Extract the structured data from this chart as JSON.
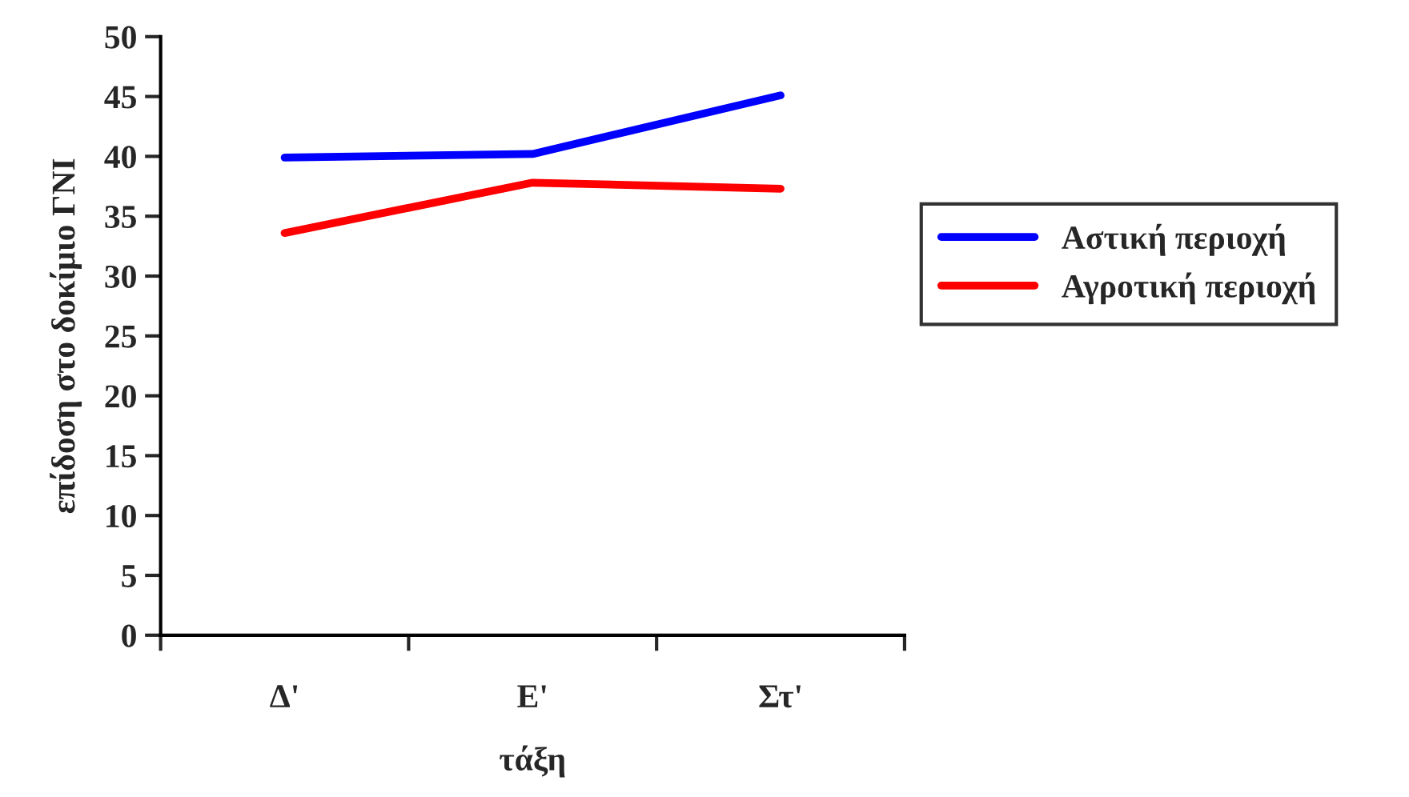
{
  "chart_data": {
    "type": "line",
    "xlabel": "τάξη",
    "ylabel": "επίδοση στο δοκίμιο ΓΝΙ",
    "categories": [
      "Δ'",
      "Ε'",
      "Στ'"
    ],
    "series": [
      {
        "name": "Αστική περιοχή",
        "color": "#0000ff",
        "values": [
          39.9,
          40.2,
          45.1
        ]
      },
      {
        "name": "Αγροτική περιοχή",
        "color": "#ff0000",
        "values": [
          33.6,
          37.8,
          37.3
        ]
      }
    ],
    "ylim": [
      0,
      50
    ],
    "yticks": [
      0,
      5,
      10,
      15,
      20,
      25,
      30,
      35,
      40,
      45,
      50
    ],
    "grid": false,
    "legend": "right",
    "marker": "none",
    "line_style": "solid"
  }
}
